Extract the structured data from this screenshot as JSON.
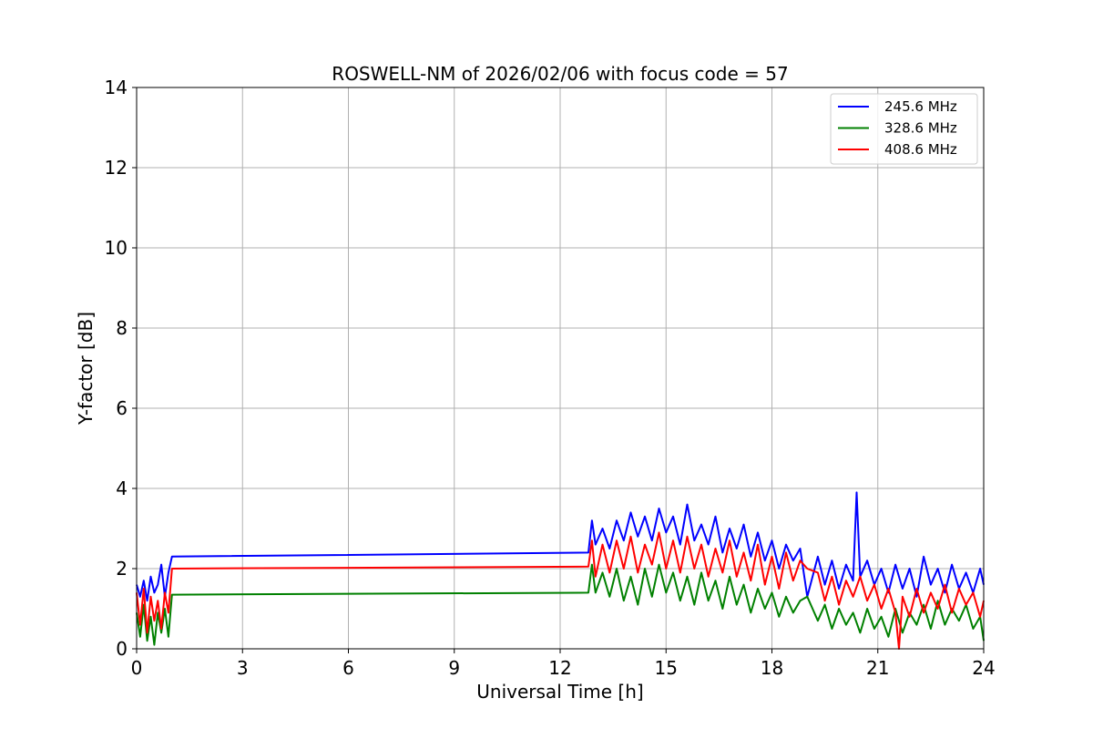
{
  "chart_data": {
    "type": "line",
    "title": "ROSWELL-NM of 2026/02/06 with focus code = 57",
    "xlabel": "Universal Time [h]",
    "ylabel": "Y-factor [dB]",
    "xlim": [
      0,
      24
    ],
    "ylim": [
      0,
      14
    ],
    "xticks": [
      0,
      3,
      6,
      9,
      12,
      15,
      18,
      21,
      24
    ],
    "yticks": [
      0,
      2,
      4,
      6,
      8,
      10,
      12,
      14
    ],
    "grid": true,
    "legend_position": "top-right",
    "series": [
      {
        "name": "245.6 MHz",
        "color": "#0000ff",
        "x": [
          0.0,
          0.1,
          0.2,
          0.3,
          0.4,
          0.5,
          0.6,
          0.7,
          0.8,
          0.9,
          1.0,
          12.8,
          12.9,
          13.0,
          13.2,
          13.4,
          13.6,
          13.8,
          14.0,
          14.2,
          14.4,
          14.6,
          14.8,
          15.0,
          15.2,
          15.4,
          15.6,
          15.8,
          16.0,
          16.2,
          16.4,
          16.6,
          16.8,
          17.0,
          17.2,
          17.4,
          17.6,
          17.8,
          18.0,
          18.2,
          18.4,
          18.6,
          18.8,
          19.0,
          19.3,
          19.5,
          19.7,
          19.9,
          20.1,
          20.3,
          20.4,
          20.5,
          20.7,
          20.9,
          21.1,
          21.3,
          21.5,
          21.7,
          21.9,
          22.1,
          22.3,
          22.5,
          22.7,
          22.9,
          23.1,
          23.3,
          23.5,
          23.7,
          23.9,
          24.0
        ],
        "y": [
          1.6,
          1.3,
          1.7,
          1.2,
          1.8,
          1.4,
          1.6,
          2.1,
          1.3,
          1.9,
          2.3,
          2.4,
          3.2,
          2.6,
          3.0,
          2.5,
          3.2,
          2.7,
          3.4,
          2.8,
          3.3,
          2.7,
          3.5,
          2.9,
          3.3,
          2.6,
          3.6,
          2.7,
          3.1,
          2.6,
          3.3,
          2.4,
          3.0,
          2.5,
          3.1,
          2.3,
          2.9,
          2.2,
          2.7,
          2.0,
          2.6,
          2.2,
          2.5,
          1.3,
          2.3,
          1.6,
          2.2,
          1.5,
          2.1,
          1.7,
          3.9,
          1.8,
          2.2,
          1.6,
          2.0,
          1.4,
          2.1,
          1.5,
          2.0,
          1.3,
          2.3,
          1.6,
          2.0,
          1.4,
          2.1,
          1.5,
          1.9,
          1.4,
          2.0,
          1.6
        ]
      },
      {
        "name": "328.6 MHz",
        "color": "#008000",
        "x": [
          0.0,
          0.1,
          0.2,
          0.3,
          0.4,
          0.5,
          0.6,
          0.7,
          0.8,
          0.9,
          1.0,
          12.8,
          12.9,
          13.0,
          13.2,
          13.4,
          13.6,
          13.8,
          14.0,
          14.2,
          14.4,
          14.6,
          14.8,
          15.0,
          15.2,
          15.4,
          15.6,
          15.8,
          16.0,
          16.2,
          16.4,
          16.6,
          16.8,
          17.0,
          17.2,
          17.4,
          17.6,
          17.8,
          18.0,
          18.2,
          18.4,
          18.6,
          18.8,
          19.0,
          19.3,
          19.5,
          19.7,
          19.9,
          20.1,
          20.3,
          20.5,
          20.7,
          20.9,
          21.1,
          21.3,
          21.5,
          21.7,
          21.9,
          22.1,
          22.3,
          22.5,
          22.7,
          22.9,
          23.1,
          23.3,
          23.5,
          23.7,
          23.9,
          24.0
        ],
        "y": [
          0.9,
          0.3,
          1.1,
          0.2,
          0.8,
          0.1,
          0.9,
          0.4,
          1.0,
          0.3,
          1.35,
          1.4,
          2.1,
          1.4,
          1.9,
          1.3,
          2.0,
          1.2,
          1.8,
          1.1,
          2.0,
          1.3,
          2.1,
          1.4,
          1.9,
          1.2,
          1.8,
          1.1,
          1.9,
          1.2,
          1.7,
          1.0,
          1.8,
          1.1,
          1.6,
          0.9,
          1.5,
          1.0,
          1.4,
          0.8,
          1.3,
          0.9,
          1.2,
          1.3,
          0.7,
          1.1,
          0.5,
          1.0,
          0.6,
          0.9,
          0.4,
          1.0,
          0.5,
          0.8,
          0.3,
          1.0,
          0.4,
          0.9,
          0.6,
          1.1,
          0.5,
          1.2,
          0.6,
          1.0,
          0.7,
          1.1,
          0.5,
          0.8,
          0.2
        ]
      },
      {
        "name": "408.6 MHz",
        "color": "#ff0000",
        "x": [
          0.0,
          0.1,
          0.2,
          0.3,
          0.4,
          0.5,
          0.6,
          0.7,
          0.8,
          0.9,
          1.0,
          12.8,
          12.9,
          13.0,
          13.2,
          13.4,
          13.6,
          13.8,
          14.0,
          14.2,
          14.4,
          14.6,
          14.8,
          15.0,
          15.2,
          15.4,
          15.6,
          15.8,
          16.0,
          16.2,
          16.4,
          16.6,
          16.8,
          17.0,
          17.2,
          17.4,
          17.6,
          17.8,
          18.0,
          18.2,
          18.4,
          18.6,
          18.8,
          19.0,
          19.3,
          19.5,
          19.7,
          19.9,
          20.1,
          20.3,
          20.5,
          20.7,
          20.9,
          21.1,
          21.3,
          21.5,
          21.6,
          21.7,
          21.9,
          22.1,
          22.3,
          22.5,
          22.7,
          22.9,
          23.1,
          23.3,
          23.5,
          23.7,
          23.9,
          24.0
        ],
        "y": [
          1.4,
          0.6,
          1.5,
          0.4,
          1.3,
          0.7,
          1.2,
          0.5,
          1.4,
          0.9,
          2.0,
          2.05,
          2.7,
          1.8,
          2.6,
          1.9,
          2.7,
          2.0,
          2.8,
          1.9,
          2.6,
          2.1,
          2.9,
          2.0,
          2.7,
          1.9,
          2.8,
          2.0,
          2.6,
          1.8,
          2.5,
          1.9,
          2.7,
          1.8,
          2.4,
          1.7,
          2.6,
          1.6,
          2.3,
          1.5,
          2.4,
          1.7,
          2.2,
          2.0,
          1.9,
          1.2,
          1.8,
          1.1,
          1.7,
          1.3,
          1.8,
          1.2,
          1.6,
          1.0,
          1.5,
          0.9,
          0.0,
          1.3,
          0.8,
          1.5,
          0.9,
          1.4,
          1.0,
          1.6,
          0.9,
          1.5,
          1.1,
          1.4,
          0.8,
          1.2
        ]
      }
    ]
  }
}
